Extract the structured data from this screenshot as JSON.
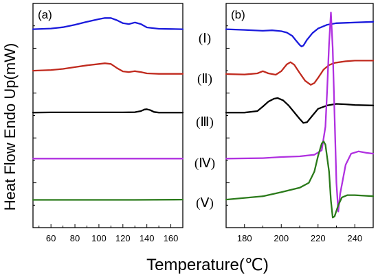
{
  "ylabel": "Heat Flow Endo Up(mW)",
  "xlabel": "Temperature(℃)",
  "colors": {
    "I": "#1a1adc",
    "II": "#c02a1e",
    "III": "#000000",
    "IV": "#b030e0",
    "V": "#2a7a1a"
  },
  "chart_data": [
    {
      "type": "line",
      "panel_label": "(a)",
      "xlim": [
        45,
        170
      ],
      "ylim": [
        0,
        1
      ],
      "xticks": [
        60,
        80,
        100,
        120,
        140,
        160
      ],
      "y_ticks_labelled": false,
      "legend": "none",
      "series": [
        {
          "key": "I",
          "x": [
            45,
            60,
            70,
            80,
            90,
            100,
            105,
            110,
            115,
            120,
            125,
            130,
            135,
            140,
            150,
            160,
            170
          ],
          "y": [
            0.885,
            0.888,
            0.894,
            0.905,
            0.918,
            0.93,
            0.935,
            0.935,
            0.925,
            0.912,
            0.908,
            0.915,
            0.908,
            0.893,
            0.887,
            0.886,
            0.885
          ]
        },
        {
          "key": "II",
          "x": [
            45,
            60,
            70,
            80,
            90,
            100,
            105,
            110,
            115,
            120,
            125,
            130,
            135,
            140,
            150,
            160,
            170
          ],
          "y": [
            0.7,
            0.703,
            0.708,
            0.716,
            0.724,
            0.73,
            0.733,
            0.73,
            0.712,
            0.697,
            0.694,
            0.698,
            0.694,
            0.688,
            0.686,
            0.686,
            0.686
          ]
        },
        {
          "key": "III",
          "x": [
            45,
            60,
            80,
            100,
            120,
            130,
            135,
            138,
            140,
            143,
            146,
            150,
            160,
            170
          ],
          "y": [
            0.513,
            0.514,
            0.514,
            0.514,
            0.514,
            0.515,
            0.52,
            0.527,
            0.528,
            0.524,
            0.516,
            0.513,
            0.513,
            0.513
          ]
        },
        {
          "key": "IV",
          "x": [
            45,
            70,
            100,
            130,
            170
          ],
          "y": [
            0.308,
            0.308,
            0.308,
            0.308,
            0.308
          ]
        },
        {
          "key": "V",
          "x": [
            45,
            70,
            100,
            130,
            170
          ],
          "y": [
            0.124,
            0.124,
            0.124,
            0.124,
            0.125
          ]
        }
      ]
    },
    {
      "type": "line",
      "panel_label": "(b)",
      "xlim": [
        170,
        250
      ],
      "ylim": [
        0,
        1
      ],
      "xticks": [
        180,
        200,
        220,
        240
      ],
      "y_ticks_labelled": false,
      "legend": "none",
      "curve_labels": [
        {
          "key": "I",
          "text": "(Ⅰ)"
        },
        {
          "key": "II",
          "text": "(Ⅱ)"
        },
        {
          "key": "III",
          "text": "(Ⅲ)"
        },
        {
          "key": "IV",
          "text": "(Ⅳ)"
        },
        {
          "key": "V",
          "text": "(Ⅴ)"
        }
      ],
      "series": [
        {
          "key": "I",
          "x": [
            170,
            180,
            190,
            195,
            200,
            203,
            206,
            208,
            210,
            211,
            212,
            214,
            217,
            220,
            225,
            230,
            240,
            250
          ],
          "y": [
            0.885,
            0.882,
            0.878,
            0.88,
            0.876,
            0.87,
            0.855,
            0.835,
            0.815,
            0.808,
            0.812,
            0.838,
            0.868,
            0.888,
            0.905,
            0.912,
            0.915,
            0.918
          ]
        },
        {
          "key": "II",
          "x": [
            170,
            180,
            187,
            190,
            193,
            197,
            200,
            203,
            205,
            207,
            210,
            213,
            216,
            218,
            220,
            223,
            226,
            229,
            235,
            240,
            250
          ],
          "y": [
            0.685,
            0.683,
            0.688,
            0.698,
            0.688,
            0.682,
            0.698,
            0.728,
            0.738,
            0.727,
            0.69,
            0.655,
            0.637,
            0.645,
            0.668,
            0.705,
            0.725,
            0.735,
            0.742,
            0.745,
            0.745
          ]
        },
        {
          "key": "III",
          "x": [
            170,
            180,
            187,
            190,
            193,
            196,
            198,
            201,
            204,
            207,
            210,
            212,
            214,
            217,
            220,
            225,
            230,
            235,
            240,
            250
          ],
          "y": [
            0.513,
            0.513,
            0.52,
            0.54,
            0.562,
            0.575,
            0.578,
            0.568,
            0.545,
            0.515,
            0.485,
            0.467,
            0.47,
            0.5,
            0.53,
            0.545,
            0.552,
            0.55,
            0.547,
            0.545
          ]
        },
        {
          "key": "IV",
          "x": [
            170,
            190,
            200,
            210,
            218,
            222,
            224,
            225,
            226,
            227,
            228,
            229,
            230,
            231,
            232,
            235,
            238,
            242,
            246,
            250
          ],
          "y": [
            0.308,
            0.31,
            0.315,
            0.318,
            0.325,
            0.345,
            0.45,
            0.62,
            0.82,
            0.96,
            0.8,
            0.5,
            0.2,
            0.072,
            0.15,
            0.28,
            0.33,
            0.34,
            0.334,
            0.33
          ]
        },
        {
          "key": "V",
          "x": [
            170,
            190,
            200,
            210,
            215,
            218,
            220,
            222,
            223,
            224,
            226,
            227,
            228,
            229,
            231,
            233,
            236,
            240,
            250
          ],
          "y": [
            0.125,
            0.14,
            0.158,
            0.178,
            0.2,
            0.25,
            0.32,
            0.375,
            0.385,
            0.37,
            0.25,
            0.12,
            0.045,
            0.05,
            0.1,
            0.135,
            0.145,
            0.145,
            0.14
          ]
        }
      ]
    }
  ]
}
